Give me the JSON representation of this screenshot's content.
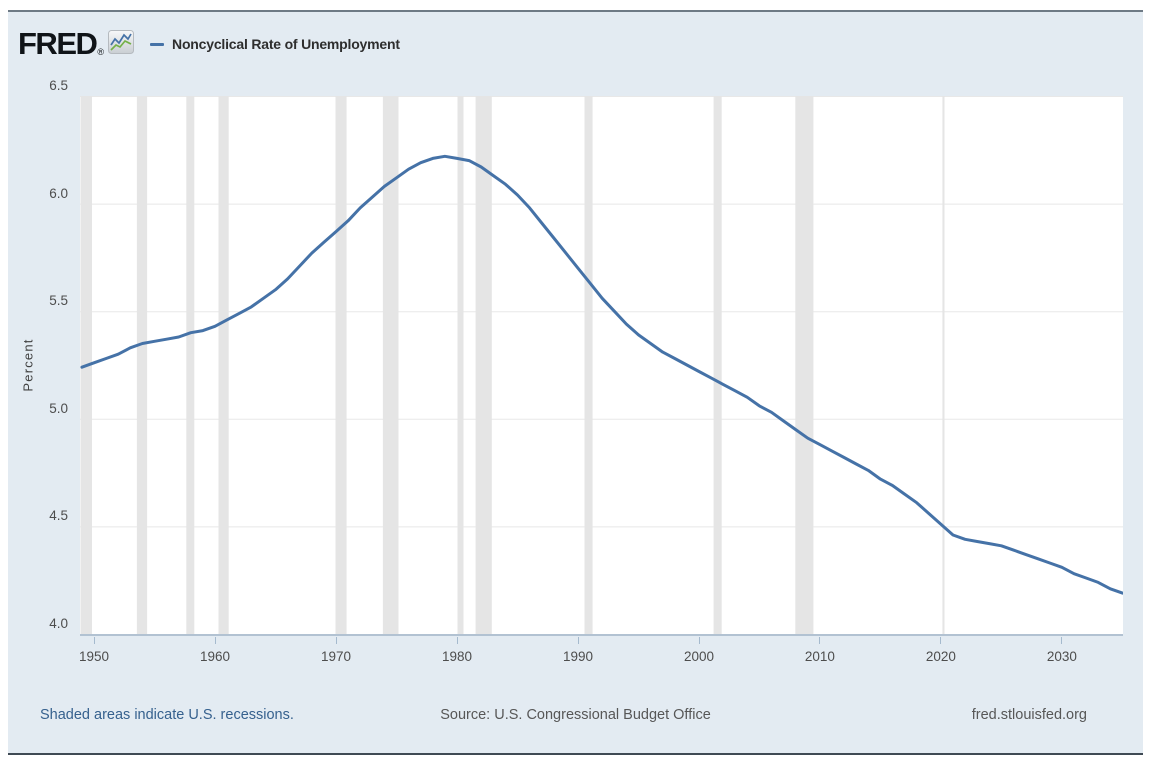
{
  "header": {
    "brand": "FRED",
    "brand_registered": "®",
    "legend": {
      "swatch_color": "#4572a7"
    }
  },
  "chart_data": {
    "type": "line",
    "title": "Noncyclical Rate of Unemployment",
    "ylabel": "Percent",
    "xlabel": "",
    "grid": "horizontal",
    "legend_position": "top-left",
    "xlim": [
      1948.84,
      2035.05
    ],
    "ylim": [
      4.0,
      6.5
    ],
    "line_color": "#4572a7",
    "recession_color": "#e5e5e5",
    "gridline_color": "#e8e8e8",
    "plot_background": "#ffffff",
    "page_background": "#e3ebf2",
    "y_ticks": [
      {
        "v": 6.5,
        "label": "6.5"
      },
      {
        "v": 6.0,
        "label": "6.0"
      },
      {
        "v": 5.5,
        "label": "5.5"
      },
      {
        "v": 5.0,
        "label": "5.0"
      },
      {
        "v": 4.5,
        "label": "4.5"
      },
      {
        "v": 4.0,
        "label": "4.0"
      }
    ],
    "x_ticks": [
      {
        "v": 1950,
        "label": "1950"
      },
      {
        "v": 1960,
        "label": "1960"
      },
      {
        "v": 1970,
        "label": "1970"
      },
      {
        "v": 1980,
        "label": "1980"
      },
      {
        "v": 1990,
        "label": "1990"
      },
      {
        "v": 2000,
        "label": "2000"
      },
      {
        "v": 2010,
        "label": "2010"
      },
      {
        "v": 2020,
        "label": "2020"
      },
      {
        "v": 2030,
        "label": "2030"
      }
    ],
    "recessions": [
      [
        1948.88,
        1949.83
      ],
      [
        1953.54,
        1954.38
      ],
      [
        1957.63,
        1958.29
      ],
      [
        1960.29,
        1961.13
      ],
      [
        1969.96,
        1970.88
      ],
      [
        1973.88,
        1975.17
      ],
      [
        1980.04,
        1980.54
      ],
      [
        1981.54,
        1982.88
      ],
      [
        1990.54,
        1991.21
      ],
      [
        2001.21,
        2001.88
      ],
      [
        2007.96,
        2009.46
      ],
      [
        2020.12,
        2020.29
      ]
    ],
    "series": [
      {
        "name": "Noncyclical Rate of Unemployment",
        "color": "#4572a7",
        "x": [
          1949,
          1950,
          1951,
          1952,
          1953,
          1954,
          1955,
          1956,
          1957,
          1958,
          1959,
          1960,
          1961,
          1962,
          1963,
          1964,
          1965,
          1966,
          1967,
          1968,
          1969,
          1970,
          1971,
          1972,
          1973,
          1974,
          1975,
          1976,
          1977,
          1978,
          1979,
          1980,
          1981,
          1982,
          1983,
          1984,
          1985,
          1986,
          1987,
          1988,
          1989,
          1990,
          1991,
          1992,
          1993,
          1994,
          1995,
          1996,
          1997,
          1998,
          1999,
          2000,
          2001,
          2002,
          2003,
          2004,
          2005,
          2006,
          2007,
          2008,
          2009,
          2010,
          2011,
          2012,
          2013,
          2014,
          2015,
          2016,
          2017,
          2018,
          2019,
          2020,
          2021,
          2022,
          2023,
          2024,
          2025,
          2026,
          2027,
          2028,
          2029,
          2030,
          2031,
          2032,
          2033,
          2034,
          2035
        ],
        "values": [
          5.24,
          5.26,
          5.28,
          5.3,
          5.33,
          5.35,
          5.36,
          5.37,
          5.38,
          5.4,
          5.41,
          5.43,
          5.46,
          5.49,
          5.52,
          5.56,
          5.6,
          5.65,
          5.71,
          5.77,
          5.82,
          5.87,
          5.92,
          5.98,
          6.03,
          6.08,
          6.12,
          6.16,
          6.19,
          6.21,
          6.22,
          6.21,
          6.2,
          6.17,
          6.13,
          6.09,
          6.04,
          5.98,
          5.91,
          5.84,
          5.77,
          5.7,
          5.63,
          5.56,
          5.5,
          5.44,
          5.39,
          5.35,
          5.31,
          5.28,
          5.25,
          5.22,
          5.19,
          5.16,
          5.13,
          5.1,
          5.06,
          5.03,
          4.99,
          4.95,
          4.91,
          4.88,
          4.85,
          4.82,
          4.79,
          4.76,
          4.72,
          4.69,
          4.65,
          4.61,
          4.56,
          4.51,
          4.46,
          4.44,
          4.43,
          4.42,
          4.41,
          4.39,
          4.37,
          4.35,
          4.33,
          4.31,
          4.28,
          4.26,
          4.24,
          4.21,
          4.19
        ]
      }
    ]
  },
  "footer": {
    "recession_note": "Shaded areas indicate U.S. recessions.",
    "source": "Source: U.S. Congressional Budget Office",
    "site": "fred.stlouisfed.org"
  }
}
